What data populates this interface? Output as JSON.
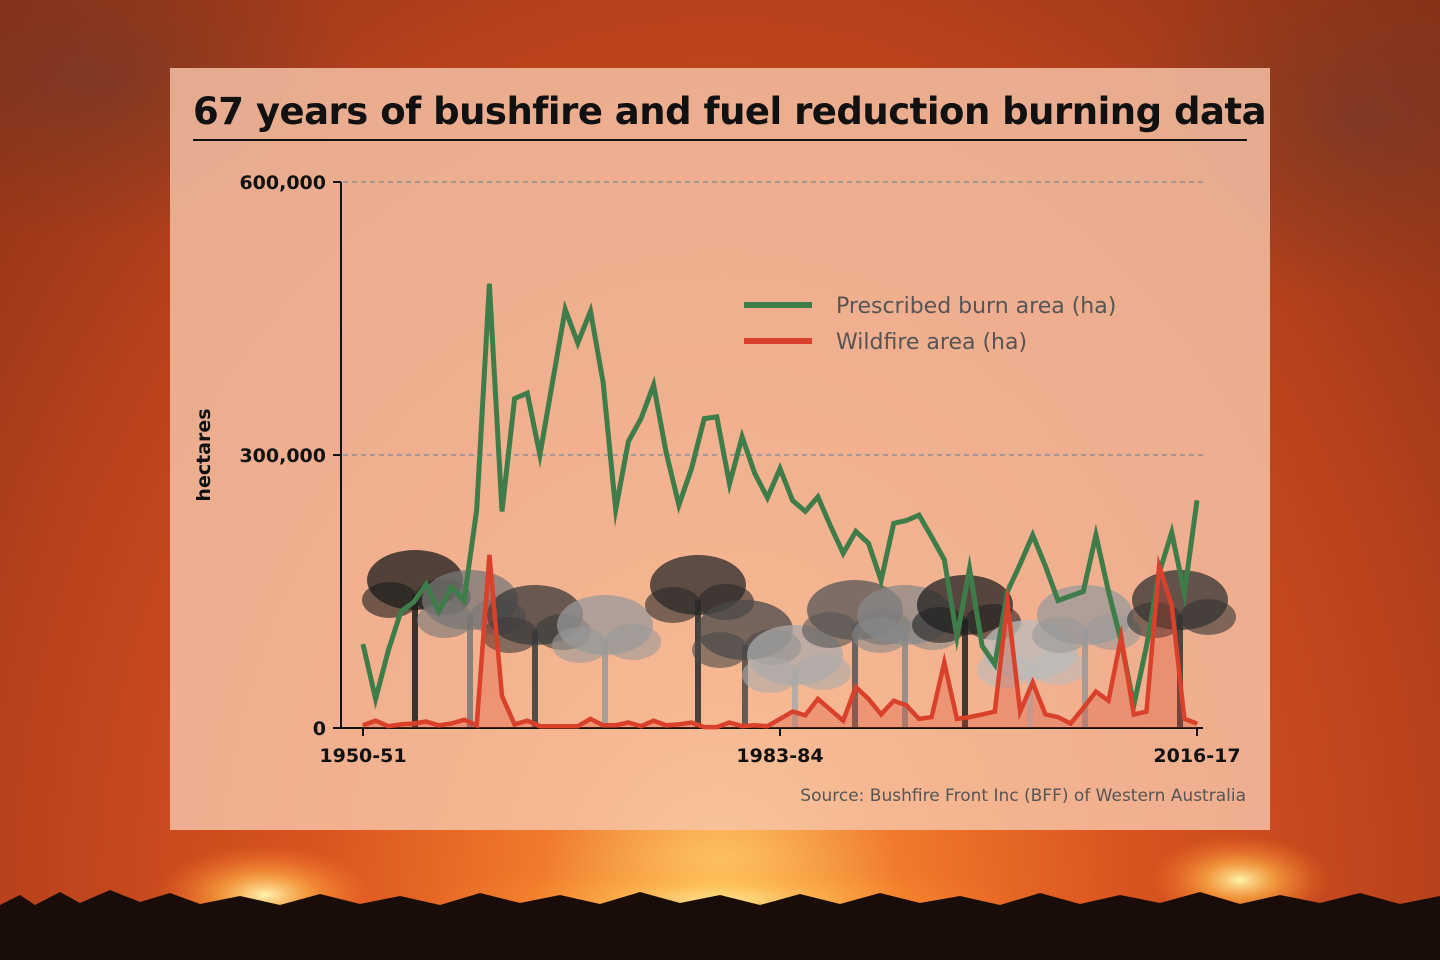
{
  "chart_data": {
    "type": "line",
    "title": "67 years of bushfire and fuel reduction burning data",
    "ylabel": "hectares",
    "xlabel": "",
    "ylim": [
      0,
      600000
    ],
    "yticks": [
      0,
      300000,
      600000
    ],
    "ytick_labels": [
      "0",
      "300,000",
      "600,000"
    ],
    "x_start_year": 1950,
    "xtick_labels": [
      "1950-51",
      "1983-84",
      "2016-17"
    ],
    "grid": "horizontal dashed",
    "legend_position": "top-right",
    "categories": [
      "1950-51",
      "1951-52",
      "1952-53",
      "1953-54",
      "1954-55",
      "1955-56",
      "1956-57",
      "1957-58",
      "1958-59",
      "1959-60",
      "1960-61",
      "1961-62",
      "1962-63",
      "1963-64",
      "1964-65",
      "1965-66",
      "1966-67",
      "1967-68",
      "1968-69",
      "1969-70",
      "1970-71",
      "1971-72",
      "1972-73",
      "1973-74",
      "1974-75",
      "1975-76",
      "1976-77",
      "1977-78",
      "1978-79",
      "1979-80",
      "1980-81",
      "1981-82",
      "1982-83",
      "1983-84",
      "1984-85",
      "1985-86",
      "1986-87",
      "1987-88",
      "1988-89",
      "1989-90",
      "1990-91",
      "1991-92",
      "1992-93",
      "1993-94",
      "1994-95",
      "1995-96",
      "1996-97",
      "1997-98",
      "1998-99",
      "1999-00",
      "2000-01",
      "2001-02",
      "2002-03",
      "2003-04",
      "2004-05",
      "2005-06",
      "2006-07",
      "2007-08",
      "2008-09",
      "2009-10",
      "2010-11",
      "2011-12",
      "2012-13",
      "2013-14",
      "2014-15",
      "2015-16",
      "2016-17"
    ],
    "series": [
      {
        "name": "Prescribed burn area (ha)",
        "color": "#3e7d4a",
        "values": [
          92000,
          32000,
          85000,
          128000,
          138000,
          158000,
          128000,
          155000,
          140000,
          240000,
          488000,
          238000,
          362000,
          368000,
          300000,
          380000,
          460000,
          423000,
          458000,
          380000,
          240000,
          315000,
          340000,
          377000,
          302000,
          245000,
          285000,
          340000,
          342000,
          268000,
          320000,
          280000,
          253000,
          285000,
          250000,
          238000,
          254000,
          222000,
          192000,
          216000,
          203000,
          162000,
          225000,
          228000,
          234000,
          210000,
          185000,
          100000,
          175000,
          90000,
          70000,
          150000,
          180000,
          212000,
          178000,
          140000,
          145000,
          150000,
          212000,
          150000,
          95000,
          25000,
          90000,
          170000,
          215000,
          148000,
          250000
        ]
      },
      {
        "name": "Wildfire area (ha)",
        "color": "#d9412a",
        "values": [
          3000,
          8000,
          2000,
          4000,
          5000,
          7000,
          3000,
          5000,
          9000,
          3000,
          190000,
          35000,
          4000,
          8000,
          2000,
          2000,
          2000,
          2000,
          10000,
          3000,
          3000,
          6000,
          2000,
          8000,
          3000,
          4000,
          6000,
          1000,
          1000,
          6000,
          2000,
          3000,
          2000,
          10000,
          18000,
          14000,
          32000,
          20000,
          8000,
          45000,
          32000,
          15000,
          30000,
          25000,
          10000,
          12000,
          72000,
          10000,
          12000,
          15000,
          18000,
          138000,
          18000,
          50000,
          15000,
          12000,
          5000,
          22000,
          40000,
          30000,
          100000,
          15000,
          18000,
          178000,
          135000,
          10000,
          5000
        ]
      }
    ],
    "source": "Source: Bushfire Front  Inc (BFF) of Western Australia"
  }
}
